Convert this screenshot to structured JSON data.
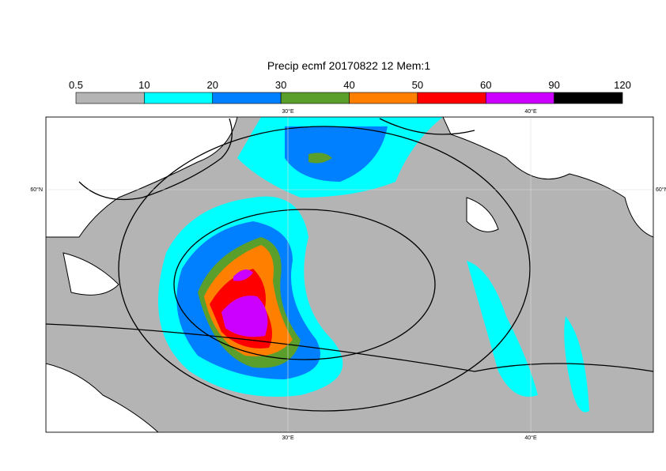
{
  "title": "Precip ecmf 20170822 12 Mem:1",
  "colorbar": {
    "ticks": [
      0.5,
      10,
      20,
      30,
      40,
      50,
      60,
      90,
      120
    ],
    "colors": [
      "#b4b4b4",
      "#00ffff",
      "#0080ff",
      "#5a9e2c",
      "#ff8000",
      "#ff0000",
      "#cc00ff",
      "#000000"
    ]
  },
  "lon_labels": [
    "30°E",
    "40°E"
  ],
  "lat_label": "60°N"
}
